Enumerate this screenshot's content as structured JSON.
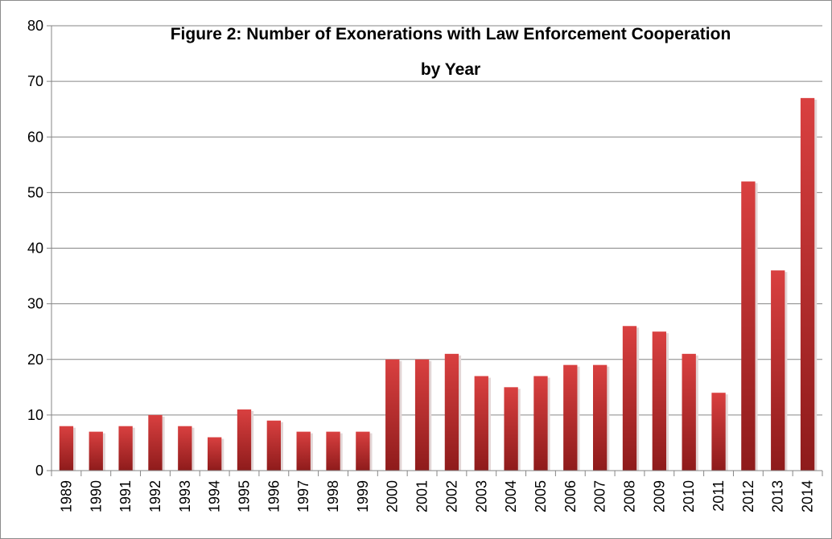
{
  "chart_data": {
    "type": "bar",
    "title_lines": [
      "Figure 2:  Number of Exonerations with Law Enforcement Cooperation",
      "by Year"
    ],
    "categories": [
      "1989",
      "1990",
      "1991",
      "1992",
      "1993",
      "1994",
      "1995",
      "1996",
      "1997",
      "1998",
      "1999",
      "2000",
      "2001",
      "2002",
      "2003",
      "2004",
      "2005",
      "2006",
      "2007",
      "2008",
      "2009",
      "2010",
      "2011",
      "2012",
      "2013",
      "2014"
    ],
    "values": [
      8,
      7,
      8,
      10,
      8,
      6,
      11,
      9,
      7,
      7,
      7,
      20,
      20,
      21,
      17,
      15,
      17,
      19,
      19,
      26,
      25,
      21,
      14,
      52,
      36,
      67
    ],
    "ylim": [
      0,
      80
    ],
    "yticks": [
      0,
      10,
      20,
      30,
      40,
      50,
      60,
      70,
      80
    ],
    "xlabel": "",
    "ylabel": "",
    "grid": true,
    "legend": "none",
    "bar_color_top": "#d94040",
    "bar_color_bottom": "#8e1b1b"
  }
}
